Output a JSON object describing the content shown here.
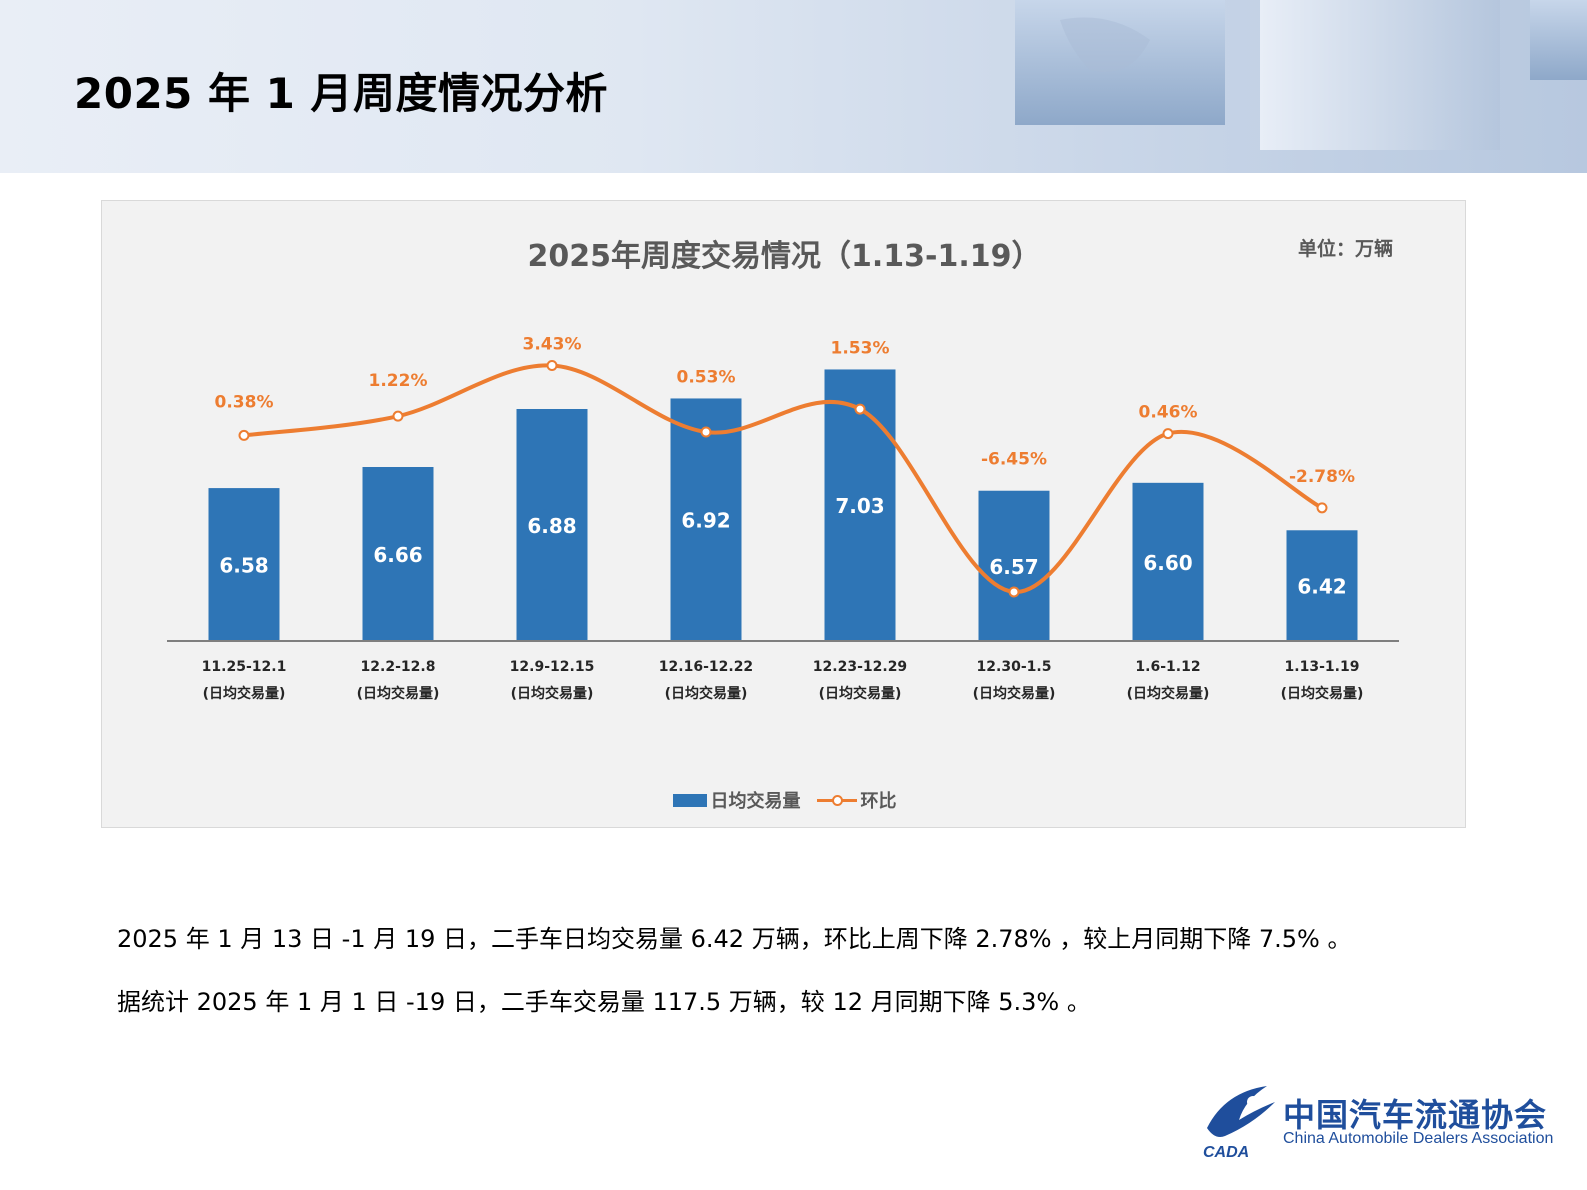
{
  "page": {
    "title": "2025 年 1 月周度情况分析"
  },
  "chart_data": {
    "type": "bar",
    "title": "2025年周度交易情况（1.13-1.19）",
    "unit": "单位：万辆",
    "categories": [
      "11.25-12.1",
      "12.2-12.8",
      "12.9-12.15",
      "12.16-12.22",
      "12.23-12.29",
      "12.30-1.5",
      "1.6-1.12",
      "1.13-1.19"
    ],
    "category_sublabel": "(日均交易量)",
    "series": [
      {
        "name": "日均交易量",
        "type": "bar",
        "values": [
          6.58,
          6.66,
          6.88,
          6.92,
          7.03,
          6.57,
          6.6,
          6.42
        ],
        "labels": [
          "6.58",
          "6.66",
          "6.88",
          "6.92",
          "7.03",
          "6.57",
          "6.60",
          "6.42"
        ],
        "color": "#2e75b6"
      },
      {
        "name": "环比",
        "type": "line",
        "smooth": true,
        "values": [
          0.38,
          1.22,
          3.43,
          0.53,
          1.53,
          -6.45,
          0.46,
          -2.78
        ],
        "labels": [
          "0.38%",
          "1.22%",
          "3.43%",
          "0.53%",
          "1.53%",
          "-6.45%",
          "0.46%",
          "-2.78%"
        ],
        "color": "#ed7d31"
      }
    ],
    "legend": {
      "position": "bottom"
    },
    "grid": false
  },
  "text": {
    "line1": "2025 年 1 月 13 日 -1 月 19 日，二手车日均交易量 6.42 万辆，环比上周下降 2.78% ，较上月同期下降 7.5% 。",
    "line2": "据统计 2025 年 1 月 1 日 -19 日，二手车交易量 117.5 万辆，较 12 月同期下降 5.3% 。"
  },
  "logo": {
    "cn": "中国汽车流通协会",
    "en": "China Automobile Dealers Association",
    "abbr": "CADA"
  }
}
